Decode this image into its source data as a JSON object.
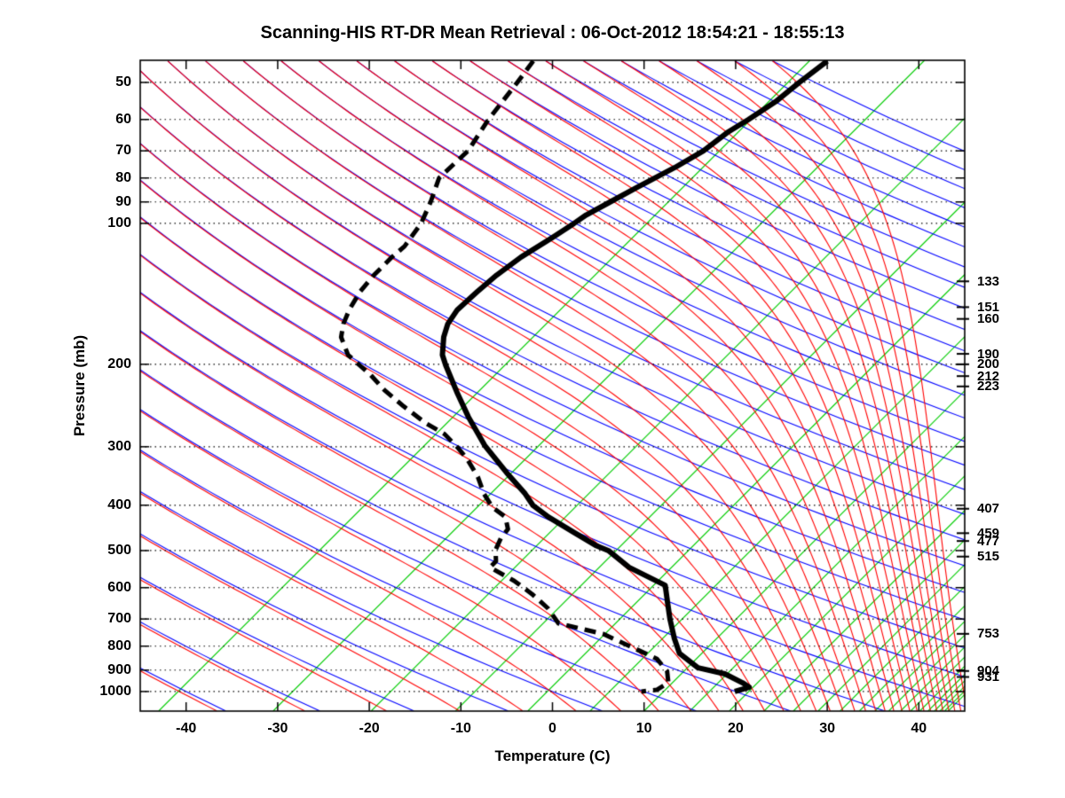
{
  "title": "Scanning-HIS RT-DR Mean Retrieval : 06-Oct-2012 18:54:21 - 18:55:13",
  "axes": {
    "x": {
      "label": "Temperature (C)",
      "ticks": [
        -40,
        -30,
        -20,
        -10,
        0,
        10,
        20,
        30,
        40
      ]
    },
    "y": {
      "label": "Pressure (mb)",
      "ticks": [
        50,
        60,
        70,
        80,
        90,
        100,
        200,
        300,
        400,
        500,
        600,
        700,
        800,
        900,
        1000
      ]
    },
    "right_levels": [
      133,
      151,
      160,
      190,
      200,
      212,
      223,
      407,
      459,
      477,
      515,
      753,
      904,
      931
    ]
  },
  "chart_data": {
    "type": "line",
    "diagram": "skew-t-log-p",
    "title": "Scanning-HIS RT-DR Mean Retrieval : 06-Oct-2012 18:54:21 - 18:55:13",
    "xlabel": "Temperature (C)",
    "ylabel": "Pressure (mb)",
    "x_ticks_c": [
      -40,
      -30,
      -20,
      -10,
      0,
      10,
      20,
      30,
      40
    ],
    "x_display_range_c": [
      -45,
      45
    ],
    "pressure_ticks_mb": [
      50,
      60,
      70,
      80,
      90,
      100,
      200,
      300,
      400,
      500,
      600,
      700,
      800,
      900,
      1000
    ],
    "pressure_range_mb": [
      45,
      1100
    ],
    "right_pressure_labels_mb": [
      133,
      151,
      160,
      190,
      200,
      212,
      223,
      407,
      459,
      477,
      515,
      753,
      904,
      931
    ],
    "skew_c_per_decade": 51.16,
    "grid": "dotted-isobars",
    "legend_position": "none",
    "series": [
      {
        "name": "temperature",
        "line": "solid",
        "color": "#000000",
        "points_p_t": [
          [
            45,
            -38.9
          ],
          [
            50,
            -39.6
          ],
          [
            55,
            -40.1
          ],
          [
            60,
            -41.1
          ],
          [
            64,
            -42.0
          ],
          [
            70,
            -42.6
          ],
          [
            76,
            -43.9
          ],
          [
            84,
            -45.9
          ],
          [
            90,
            -47.2
          ],
          [
            96,
            -48.4
          ],
          [
            100,
            -48.8
          ],
          [
            107,
            -49.6
          ],
          [
            118,
            -50.9
          ],
          [
            129,
            -51.6
          ],
          [
            140,
            -51.9
          ],
          [
            153,
            -52.1
          ],
          [
            164,
            -51.6
          ],
          [
            175,
            -50.6
          ],
          [
            191,
            -48.8
          ],
          [
            201,
            -47.3
          ],
          [
            229,
            -43.2
          ],
          [
            259,
            -39.2
          ],
          [
            298,
            -34.3
          ],
          [
            341,
            -28.9
          ],
          [
            378,
            -24.6
          ],
          [
            400,
            -22.5
          ],
          [
            424,
            -19.5
          ],
          [
            456,
            -15.2
          ],
          [
            487,
            -11.3
          ],
          [
            500,
            -9.3
          ],
          [
            543,
            -5.2
          ],
          [
            593,
            0.7
          ],
          [
            647,
            2.9
          ],
          [
            700,
            4.9
          ],
          [
            770,
            7.5
          ],
          [
            829,
            9.7
          ],
          [
            890,
            13.3
          ],
          [
            917,
            16.9
          ],
          [
            958,
            19.8
          ],
          [
            979,
            21.0
          ],
          [
            1000,
            19.9
          ]
        ]
      },
      {
        "name": "dew_point",
        "line": "dashed",
        "color": "#000000",
        "points_p_t": [
          [
            45,
            -71.0
          ],
          [
            50,
            -70.4
          ],
          [
            60,
            -69.5
          ],
          [
            70,
            -68.3
          ],
          [
            80,
            -68.5
          ],
          [
            90,
            -66.8
          ],
          [
            100,
            -65.5
          ],
          [
            112,
            -64.8
          ],
          [
            118,
            -65.0
          ],
          [
            129,
            -65.0
          ],
          [
            140,
            -64.7
          ],
          [
            153,
            -63.9
          ],
          [
            164,
            -63.0
          ],
          [
            175,
            -61.8
          ],
          [
            191,
            -59.1
          ],
          [
            201,
            -56.7
          ],
          [
            211,
            -54.4
          ],
          [
            227,
            -51.3
          ],
          [
            246,
            -47.4
          ],
          [
            267,
            -43.2
          ],
          [
            282,
            -39.9
          ],
          [
            302,
            -36.9
          ],
          [
            318,
            -34.8
          ],
          [
            348,
            -31.6
          ],
          [
            378,
            -29.1
          ],
          [
            404,
            -26.7
          ],
          [
            424,
            -24.2
          ],
          [
            450,
            -22.6
          ],
          [
            470,
            -22.4
          ],
          [
            498,
            -21.7
          ],
          [
            527,
            -20.4
          ],
          [
            543,
            -20.4
          ],
          [
            580,
            -16.3
          ],
          [
            619,
            -12.9
          ],
          [
            664,
            -9.6
          ],
          [
            715,
            -6.8
          ],
          [
            753,
            -0.8
          ],
          [
            805,
            3.9
          ],
          [
            851,
            7.8
          ],
          [
            905,
            10.3
          ],
          [
            958,
            11.7
          ],
          [
            992,
            11.2
          ],
          [
            1000,
            9.7
          ]
        ]
      }
    ],
    "background": {
      "isobar_gridlines_mb": [
        50,
        60,
        70,
        80,
        90,
        100,
        200,
        300,
        400,
        500,
        600,
        700,
        800,
        900,
        1000
      ],
      "dry_adiabats": {
        "color": "#0000ff",
        "theta_c_from": -60,
        "theta_c_to": 280,
        "theta_c_step": 10
      },
      "moist_adiabats": {
        "color": "#ff0000",
        "theta_c_from": -60,
        "theta_c_to": 280,
        "theta_c_step": 10
      },
      "skewed_green_lines": {
        "color": "#00cc00",
        "surface_intercepts_display_c": [
          -43.0,
          -30.5,
          -19.8,
          -10.6,
          -2.7,
          4.1,
          10.0,
          15.0,
          19.3,
          23.1,
          26.3,
          29.0,
          31.4,
          33.5,
          35.2,
          36.7,
          38.0,
          39.1,
          40.1,
          41.0,
          41.7,
          42.3,
          42.8,
          43.2
        ]
      }
    }
  }
}
